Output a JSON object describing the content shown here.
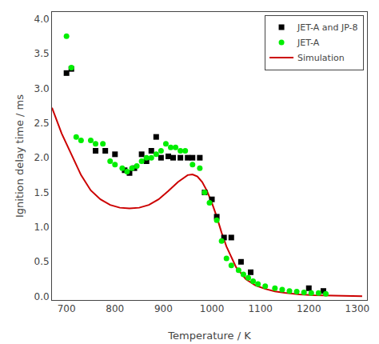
{
  "chart_data": {
    "type": "line",
    "title": "",
    "xlabel": "Temperature / K",
    "ylabel": "Ignition delay time / ms",
    "xlim": [
      670,
      1320
    ],
    "ylim": [
      -0.05,
      4.1
    ],
    "xticks": [
      700,
      800,
      900,
      1000,
      1100,
      1200,
      1300
    ],
    "yticks": [
      {
        "value": 0,
        "label": "0.0"
      },
      0.5,
      {
        "value": 1,
        "label": "1.0"
      },
      1.5,
      {
        "value": 2,
        "label": "2.0"
      },
      2.5,
      {
        "value": 3,
        "label": "3.0"
      },
      3.5,
      {
        "value": 4,
        "label": "4.0"
      }
    ],
    "grid": false,
    "legend": "upper right",
    "series": [
      {
        "name": "JET-A and JP-8",
        "type": "scatter",
        "marker": "square",
        "color": "#000000",
        "x": [
          700,
          710,
          760,
          780,
          800,
          820,
          830,
          840,
          855,
          865,
          875,
          885,
          895,
          910,
          920,
          935,
          950,
          960,
          975,
          985,
          1000,
          1010,
          1025,
          1040,
          1060,
          1080,
          1200,
          1230
        ],
        "values": [
          3.22,
          3.28,
          2.1,
          2.1,
          2.05,
          1.82,
          1.78,
          1.85,
          2.05,
          1.95,
          2.1,
          2.3,
          2.0,
          2.02,
          2.0,
          2.0,
          2.0,
          2.0,
          2.0,
          1.5,
          1.4,
          1.15,
          0.85,
          0.85,
          0.5,
          0.35,
          0.12,
          0.08
        ]
      },
      {
        "name": "JET-A",
        "type": "scatter",
        "marker": "circle",
        "color": "#00ee00",
        "x": [
          700,
          710,
          720,
          730,
          750,
          760,
          775,
          790,
          800,
          815,
          825,
          835,
          845,
          855,
          865,
          875,
          885,
          895,
          905,
          915,
          925,
          935,
          945,
          960,
          975,
          985,
          995,
          1010,
          1020,
          1030,
          1040,
          1055,
          1065,
          1075,
          1085,
          1095,
          1110,
          1130,
          1145,
          1160,
          1175,
          1190,
          1205,
          1220,
          1235
        ],
        "values": [
          3.75,
          3.3,
          2.3,
          2.25,
          2.25,
          2.2,
          2.2,
          1.95,
          1.9,
          1.85,
          1.8,
          1.85,
          1.88,
          1.95,
          2.0,
          2.0,
          2.05,
          2.1,
          2.2,
          2.15,
          2.15,
          2.1,
          2.1,
          1.9,
          1.85,
          1.5,
          1.35,
          1.1,
          0.8,
          0.55,
          0.45,
          0.38,
          0.32,
          0.27,
          0.22,
          0.18,
          0.15,
          0.12,
          0.1,
          0.08,
          0.07,
          0.06,
          0.05,
          0.05,
          0.04
        ]
      },
      {
        "name": "Simulation",
        "type": "line",
        "line_style": "solid",
        "color": "#cc0000",
        "x": [
          670,
          690,
          710,
          730,
          750,
          770,
          790,
          810,
          830,
          850,
          870,
          890,
          910,
          930,
          950,
          960,
          970,
          980,
          990,
          1000,
          1010,
          1020,
          1030,
          1050,
          1070,
          1090,
          1110,
          1130,
          1150,
          1180,
          1210,
          1250,
          1310
        ],
        "values": [
          2.72,
          2.35,
          2.05,
          1.75,
          1.53,
          1.4,
          1.32,
          1.28,
          1.27,
          1.28,
          1.32,
          1.4,
          1.52,
          1.65,
          1.75,
          1.76,
          1.73,
          1.65,
          1.52,
          1.35,
          1.15,
          0.92,
          0.72,
          0.42,
          0.25,
          0.16,
          0.11,
          0.075,
          0.053,
          0.03,
          0.018,
          0.01,
          0.004
        ]
      }
    ]
  }
}
